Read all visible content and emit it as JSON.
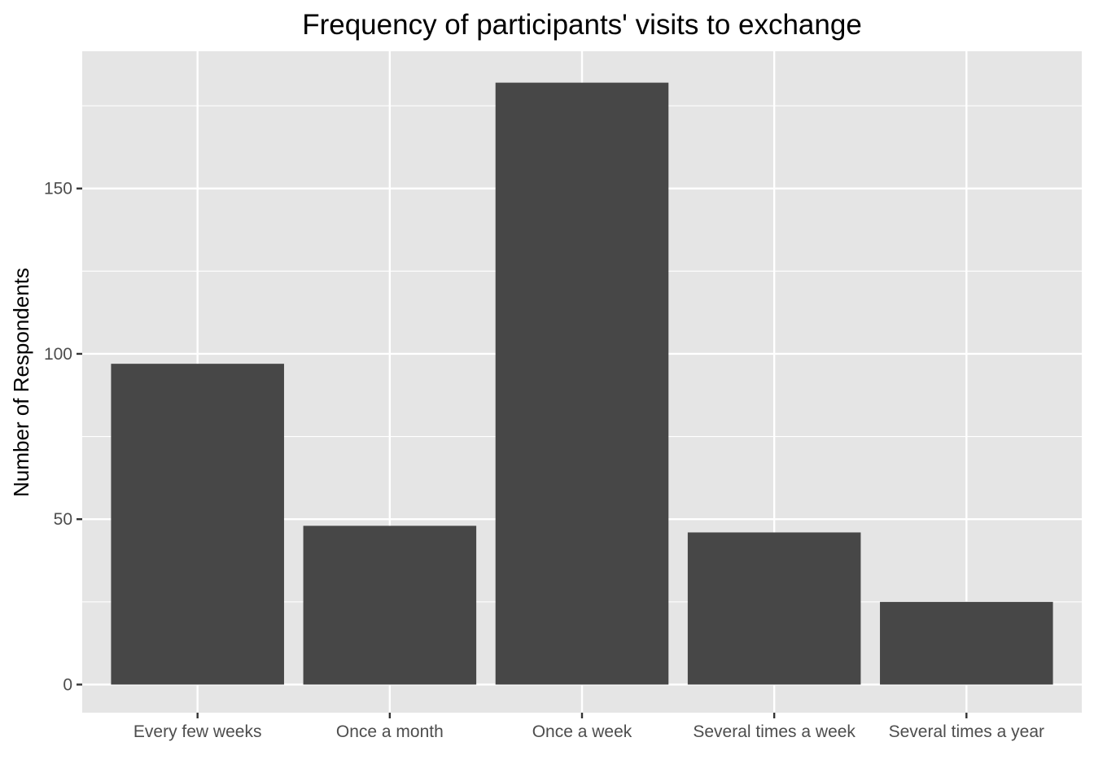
{
  "chart_data": {
    "type": "bar",
    "title": "Frequency of participants' visits to exchange",
    "xlabel": "",
    "ylabel": "Number of Respondents",
    "categories": [
      "Every few weeks",
      "Once a month",
      "Once a week",
      "Several times a week",
      "Several times a year"
    ],
    "values": [
      97,
      48,
      182,
      46,
      25
    ],
    "ylim": [
      -8.5,
      191.5
    ],
    "yticks": [
      0,
      50,
      100,
      150
    ],
    "grid": true,
    "legend": "none",
    "colors": {
      "bar": "#474747",
      "panel": "#e5e5e5",
      "grid": "#ffffff",
      "tick": "#333333"
    }
  }
}
